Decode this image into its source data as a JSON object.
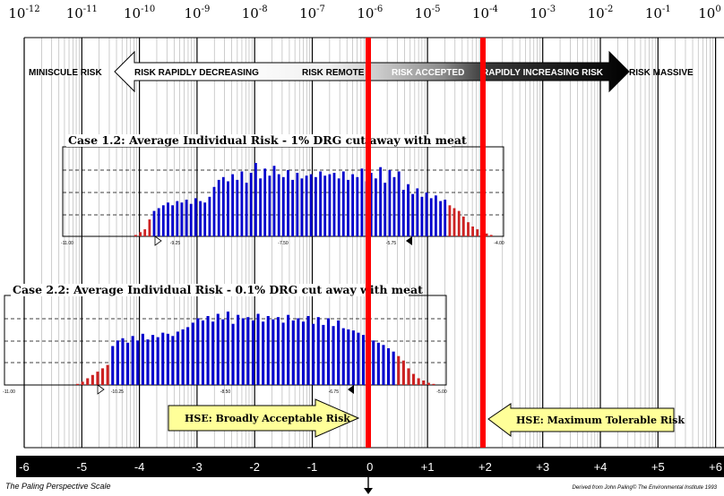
{
  "title": "The Paling Perspective Scale",
  "credit": "Derived from John Paling© The Environmental Institute 1993",
  "top_scale": [
    {
      "base": "10",
      "exp": "-12"
    },
    {
      "base": "10",
      "exp": "-11"
    },
    {
      "base": "10",
      "exp": "-10"
    },
    {
      "base": "10",
      "exp": "-9"
    },
    {
      "base": "10",
      "exp": "-8"
    },
    {
      "base": "10",
      "exp": "-7"
    },
    {
      "base": "10",
      "exp": "-6"
    },
    {
      "base": "10",
      "exp": "-5"
    },
    {
      "base": "10",
      "exp": "-4"
    },
    {
      "base": "10",
      "exp": "-3"
    },
    {
      "base": "10",
      "exp": "-2"
    },
    {
      "base": "10",
      "exp": "-1"
    },
    {
      "base": "10",
      "exp": "0"
    }
  ],
  "bottom_scale": [
    "-6",
    "-5",
    "-4",
    "-3",
    "-2",
    "-1",
    "0",
    "+1",
    "+2",
    "+3",
    "+4",
    "+5",
    "+6"
  ],
  "zones": {
    "left": "MINISCULE RISK",
    "decreasing": "RISK RAPIDLY DECREASING",
    "remote": "RISK REMOTE",
    "accepted": "RISK ACCEPTED",
    "increasing": "RAPIDLY INCREASING RISK",
    "right": "RISK MASSIVE"
  },
  "markers": {
    "broadly_acceptable": "HSE: Broadly Acceptable Risk",
    "maximum_tolerable": "HSE: Maximum Tolerable Risk"
  },
  "colors": {
    "threshold": "#ff0000",
    "bars_main": "#0000cc",
    "bars_tail": "#cc2222",
    "callout": "#ffff99",
    "scale_bar": "#000000"
  },
  "histograms": [
    {
      "title": "Case 1.2: Average Individual Risk - 1% DRG cut away with meat",
      "axis_labels": [
        "-11.00",
        "-9.25",
        "-7.50",
        "-5.75",
        "-4.00"
      ],
      "values": [
        1,
        3,
        5,
        12,
        18,
        20,
        22,
        24,
        22,
        25,
        24,
        26,
        23,
        27,
        25,
        24,
        28,
        35,
        40,
        42,
        39,
        44,
        40,
        46,
        38,
        45,
        52,
        41,
        48,
        43,
        50,
        44,
        42,
        47,
        40,
        45,
        41,
        43,
        44,
        42,
        46,
        43,
        44,
        45,
        41,
        46,
        40,
        44,
        42,
        48,
        39,
        45,
        41,
        49,
        38,
        47,
        42,
        46,
        33,
        37,
        30,
        34,
        28,
        31,
        27,
        29,
        25,
        26,
        22,
        20,
        18,
        14,
        10,
        7,
        5,
        3,
        2,
        1
      ]
    },
    {
      "title": "Case 2.2: Average Individual Risk - 0.1% DRG cut away with meat",
      "axis_labels": [
        "-11.00",
        "-10.25",
        "-8.50",
        "-6.75",
        "-5.00"
      ],
      "values": [
        1,
        3,
        6,
        9,
        12,
        15,
        18,
        35,
        40,
        42,
        38,
        44,
        40,
        46,
        41,
        45,
        43,
        47,
        46,
        44,
        48,
        50,
        52,
        56,
        60,
        58,
        62,
        57,
        64,
        59,
        66,
        55,
        63,
        60,
        61,
        58,
        64,
        57,
        62,
        59,
        61,
        56,
        63,
        58,
        60,
        57,
        62,
        55,
        61,
        54,
        60,
        53,
        58,
        51,
        50,
        49,
        47,
        45,
        42,
        40,
        38,
        36,
        33,
        30,
        26,
        22,
        15,
        10,
        6,
        4,
        2,
        1
      ]
    }
  ]
}
